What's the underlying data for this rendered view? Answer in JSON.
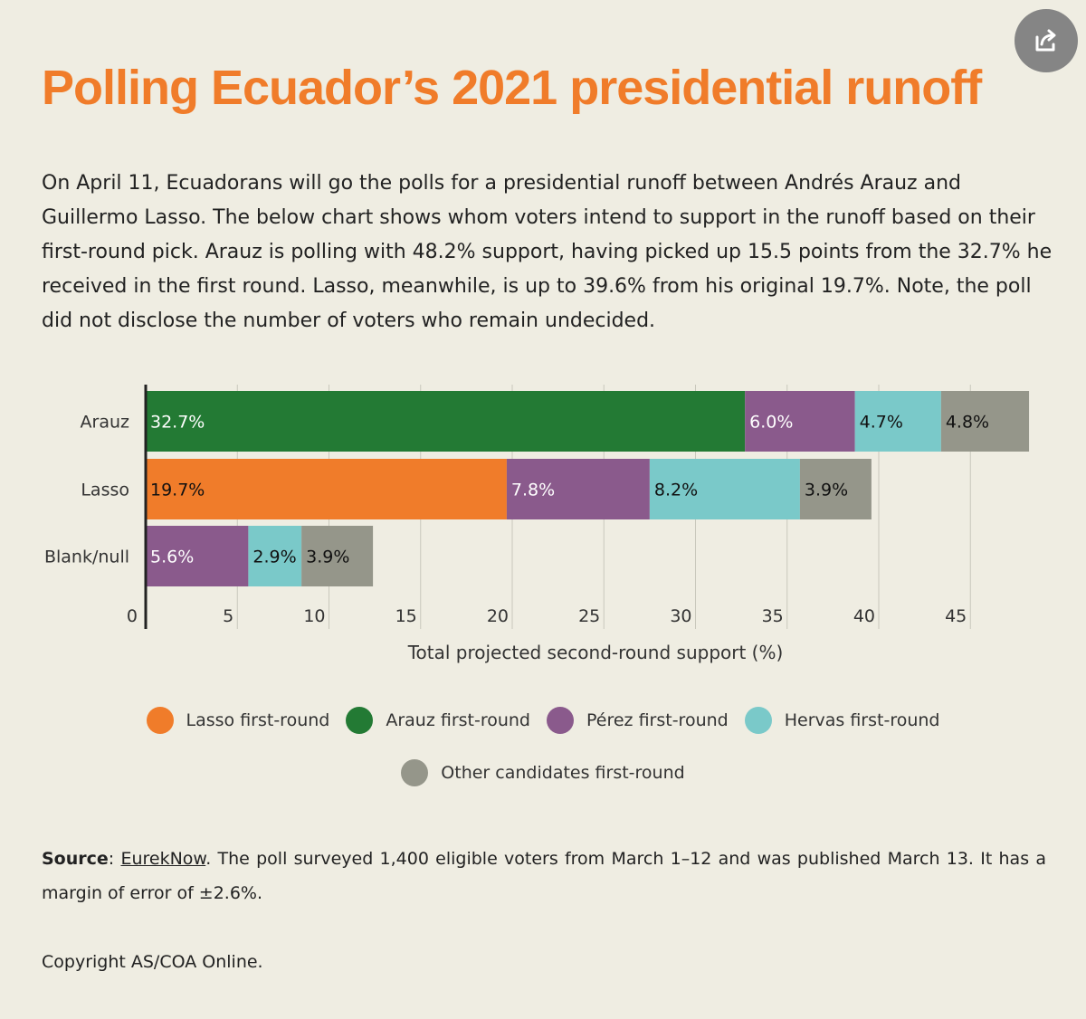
{
  "title": "Polling Ecuador’s 2021 presidential runoff",
  "intro": "On April 11, Ecuadorans will go the polls for a presidential runoff between Andrés Arauz and Guillermo Lasso. The below chart shows whom voters intend to support in the runoff based on their first-round pick. Arauz is polling with 48.2% support, having picked up 15.5 points from the 32.7% he received in the first round. Lasso, meanwhile, is up to 39.6% from his original 19.7%. Note, the poll did not disclose the number of voters who remain undecided.",
  "share_icon": "share-icon",
  "chart_data": {
    "type": "bar",
    "orientation": "horizontal",
    "stacked": true,
    "categories": [
      "Arauz",
      "Lasso",
      "Blank/null"
    ],
    "series": [
      {
        "name": "Lasso first-round",
        "color": "#f07c2a",
        "values": [
          0,
          19.7,
          0
        ],
        "labels": [
          "",
          "19.7%",
          ""
        ],
        "label_color": "#111111"
      },
      {
        "name": "Arauz first-round",
        "color": "#237a34",
        "values": [
          32.7,
          0,
          0
        ],
        "labels": [
          "32.7%",
          "",
          ""
        ],
        "label_color": "#ffffff"
      },
      {
        "name": "Pérez first-round",
        "color": "#8a5a8c",
        "values": [
          6.0,
          7.8,
          5.6
        ],
        "labels": [
          "6.0%",
          "7.8%",
          "5.6%"
        ],
        "label_color": "#ffffff"
      },
      {
        "name": "Hervas first-round",
        "color": "#7ac9c9",
        "values": [
          4.7,
          8.2,
          2.9
        ],
        "labels": [
          "4.7%",
          "8.2%",
          "2.9%"
        ],
        "label_color": "#111111"
      },
      {
        "name": "Other candidates first-round",
        "color": "#95968a",
        "values": [
          4.8,
          3.9,
          3.9
        ],
        "labels": [
          "4.8%",
          "3.9%",
          "3.9%"
        ],
        "label_color": "#111111"
      }
    ],
    "xlabel": "Total projected second-round support (%)",
    "xlim": [
      0,
      48
    ],
    "xticks": [
      0,
      5,
      10,
      15,
      20,
      25,
      30,
      35,
      40,
      45
    ],
    "grid": true,
    "legend_position": "bottom"
  },
  "legend": [
    {
      "label": "Lasso first-round",
      "color": "#f07c2a"
    },
    {
      "label": "Arauz first-round",
      "color": "#237a34"
    },
    {
      "label": "Pérez first-round",
      "color": "#8a5a8c"
    },
    {
      "label": "Hervas first-round",
      "color": "#7ac9c9"
    },
    {
      "label": "Other candidates first-round",
      "color": "#95968a"
    }
  ],
  "source": {
    "label": "Source",
    "link_text": "EurekNow",
    "text": ". The poll surveyed 1,400 eligible voters from March 1–12 and was published March 13. It has a margin of error of ±2.6%."
  },
  "copyright": "Copyright AS/COA Online."
}
